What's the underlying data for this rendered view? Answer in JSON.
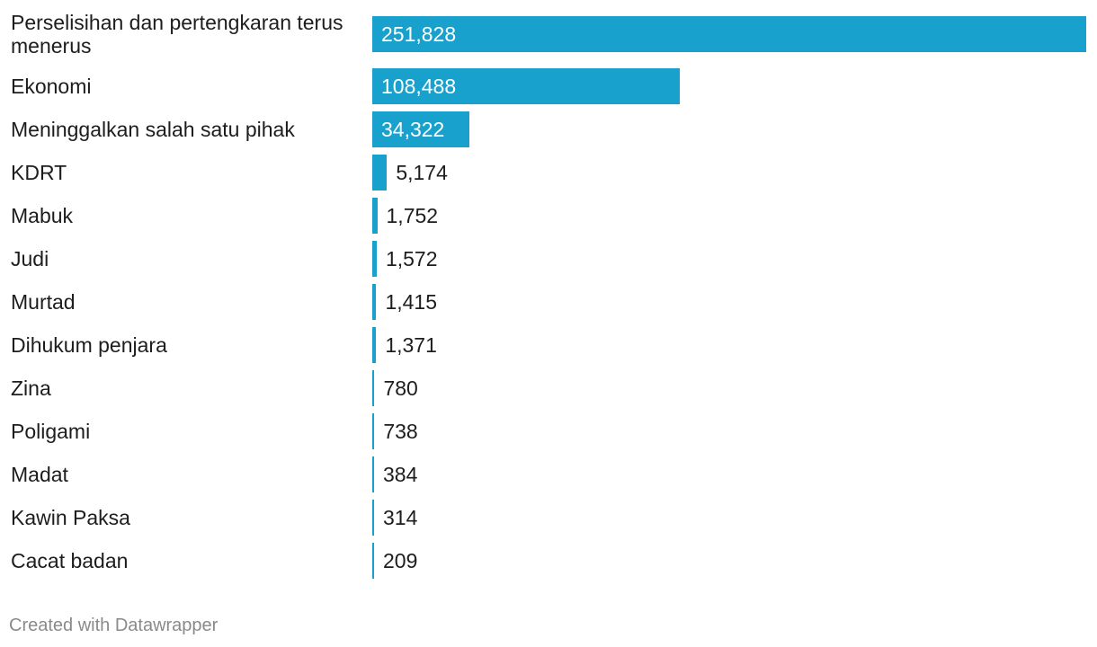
{
  "chart_data": {
    "type": "bar",
    "orientation": "horizontal",
    "categories": [
      "Perselisihan dan pertengkaran terus menerus",
      "Ekonomi",
      "Meninggalkan salah satu pihak",
      "KDRT",
      "Mabuk",
      "Judi",
      "Murtad",
      "Dihukum penjara",
      "Zina",
      "Poligami",
      "Madat",
      "Kawin Paksa",
      "Cacat badan"
    ],
    "values": [
      251828,
      108488,
      34322,
      5174,
      1752,
      1572,
      1415,
      1371,
      780,
      738,
      384,
      314,
      209
    ],
    "value_labels": [
      "251,828",
      "108,488",
      "34,322",
      "5,174",
      "1,752",
      "1,572",
      "1,415",
      "1,371",
      "780",
      "738",
      "384",
      "314",
      "209"
    ],
    "xlim": [
      0,
      251828
    ],
    "grid": false,
    "bar_color": "#18a1cd"
  },
  "footer": {
    "credit": "Created with Datawrapper"
  }
}
